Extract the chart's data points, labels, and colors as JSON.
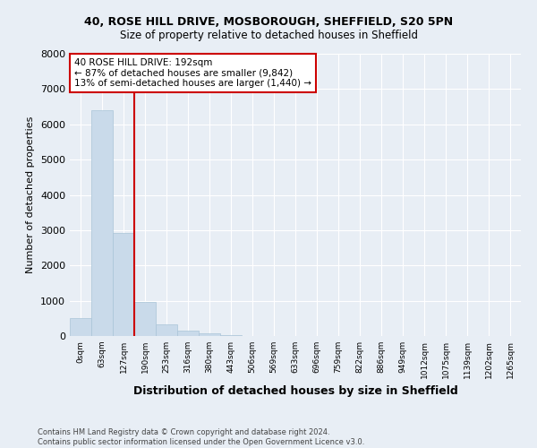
{
  "title1": "40, ROSE HILL DRIVE, MOSBOROUGH, SHEFFIELD, S20 5PN",
  "title2": "Size of property relative to detached houses in Sheffield",
  "xlabel": "Distribution of detached houses by size in Sheffield",
  "ylabel": "Number of detached properties",
  "bar_labels": [
    "0sqm",
    "63sqm",
    "127sqm",
    "190sqm",
    "253sqm",
    "316sqm",
    "380sqm",
    "443sqm",
    "506sqm",
    "569sqm",
    "633sqm",
    "696sqm",
    "759sqm",
    "822sqm",
    "886sqm",
    "949sqm",
    "1012sqm",
    "1075sqm",
    "1139sqm",
    "1202sqm",
    "1265sqm"
  ],
  "bar_values": [
    500,
    6400,
    2920,
    960,
    340,
    150,
    70,
    30,
    0,
    0,
    0,
    0,
    0,
    0,
    0,
    0,
    0,
    0,
    0,
    0,
    0
  ],
  "bar_color": "#c9daea",
  "bar_edge_color": "#aac4d8",
  "property_line_x": 3,
  "annotation_text": "40 ROSE HILL DRIVE: 192sqm\n← 87% of detached houses are smaller (9,842)\n13% of semi-detached houses are larger (1,440) →",
  "annotation_box_color": "#ffffff",
  "annotation_box_edge": "#cc0000",
  "vline_color": "#cc0000",
  "ylim": [
    0,
    8000
  ],
  "yticks": [
    0,
    1000,
    2000,
    3000,
    4000,
    5000,
    6000,
    7000,
    8000
  ],
  "footnote": "Contains HM Land Registry data © Crown copyright and database right 2024.\nContains public sector information licensed under the Open Government Licence v3.0.",
  "bg_color": "#e8eef5",
  "title_fontsize": 9,
  "subtitle_fontsize": 8.5
}
